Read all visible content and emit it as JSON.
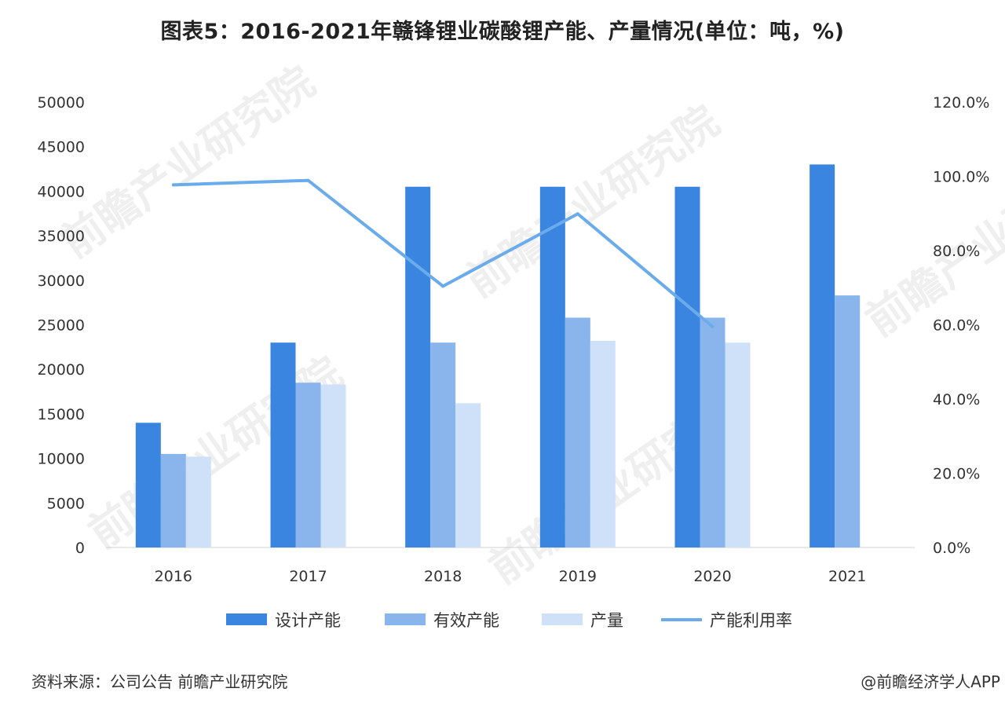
{
  "title": "图表5：2016-2021年赣锋锂业碳酸锂产能、产量情况(单位：吨，%)",
  "source": "资料来源：公司公告 前瞻产业研究院",
  "credit": "@前瞻经济学人APP",
  "watermark": "前瞻产业研究院",
  "colors": {
    "design": "#3a85df",
    "effective": "#8ab4ec",
    "output": "#cfe1f8",
    "rate": "#6aabec"
  },
  "chart_data": {
    "type": "bar",
    "categories": [
      "2016",
      "2017",
      "2018",
      "2019",
      "2020",
      "2021"
    ],
    "series": [
      {
        "name": "设计产能",
        "kind": "bar",
        "axis": "left",
        "values": [
          14000,
          23000,
          40500,
          40500,
          40500,
          43000
        ]
      },
      {
        "name": "有效产能",
        "kind": "bar",
        "axis": "left",
        "values": [
          10500,
          18500,
          23000,
          25800,
          25800,
          28300
        ]
      },
      {
        "name": "产量",
        "kind": "bar",
        "axis": "left",
        "values": [
          10200,
          18300,
          16200,
          23200,
          23000,
          null
        ]
      },
      {
        "name": "产能利用率",
        "kind": "line",
        "axis": "right",
        "values": [
          97.7,
          98.9,
          70.4,
          89.9,
          59.5,
          null
        ]
      }
    ],
    "y_left": {
      "min": 0,
      "max": 50000,
      "ticks": [
        "0",
        "5000",
        "10000",
        "15000",
        "20000",
        "25000",
        "30000",
        "35000",
        "40000",
        "45000",
        "50000"
      ]
    },
    "y_right": {
      "min": 0,
      "max": 120,
      "ticks": [
        "0.0%",
        "20.0%",
        "40.0%",
        "60.0%",
        "80.0%",
        "100.0%",
        "120.0%"
      ]
    },
    "legend_position": "bottom",
    "grid": false
  }
}
